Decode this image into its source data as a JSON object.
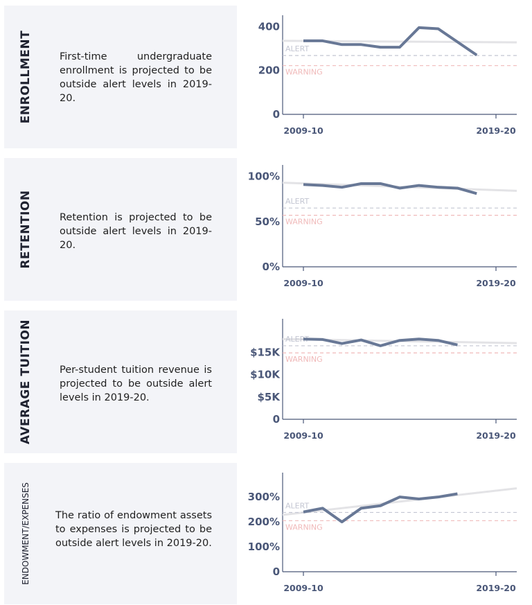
{
  "colors": {
    "card_bg": "#f3f4f8",
    "series_line": "#687896",
    "trend_line": "#e3e3e6",
    "axis": "#4a5778",
    "alert_line": "#c3c6d2",
    "warning_line": "#f0b9b9"
  },
  "panels": [
    {
      "label": "ENROLLMENT",
      "description": "First-time undergraduate enrollment is projected to be outside alert levels in 2019-20.",
      "alert_label": "ALERT",
      "warning_label": "WARNING",
      "x_start_label": "2009-10",
      "x_end_label": "2019-20",
      "y_tick_labels": [
        "0",
        "200",
        "400"
      ]
    },
    {
      "label": "RETENTION",
      "description": "Retention is projected to be outside alert levels in 2019-20.",
      "alert_label": "ALERT",
      "warning_label": "WARNING",
      "x_start_label": "2009-10",
      "x_end_label": "2019-20",
      "y_tick_labels": [
        "0%",
        "50%",
        "100%"
      ]
    },
    {
      "label": "AVERAGE TUITION",
      "description": "Per-student tuition revenue is projected to be outside alert levels in 2019-20.",
      "alert_label": "ALERT",
      "warning_label": "WARNING",
      "x_start_label": "2009-10",
      "x_end_label": "2019-20",
      "y_tick_labels": [
        "0",
        "$5K",
        "$10K",
        "$15K"
      ]
    },
    {
      "label": "ENDOWMENT/EXPENSES",
      "description": "The ratio of endowment assets to expenses is projected to be outside alert levels in 2019-20.",
      "alert_label": "ALERT",
      "warning_label": "WARNING",
      "x_start_label": "2009-10",
      "x_end_label": "2019-20",
      "y_tick_labels": [
        "0",
        "100%",
        "200%",
        "300%"
      ]
    }
  ],
  "chart_data": [
    {
      "type": "line",
      "ylim": [
        0,
        420
      ],
      "yticks": [
        0,
        200,
        400
      ],
      "x_range": [
        "2009-10",
        "2019-20"
      ],
      "series": [
        {
          "x": [
            "2009-10",
            "2010-11",
            "2011-12",
            "2012-13",
            "2013-14",
            "2014-15",
            "2015-16",
            "2016-17",
            "2017-18",
            "2018-19"
          ],
          "values": [
            335,
            335,
            318,
            318,
            306,
            306,
            395,
            390,
            330,
            270
          ]
        }
      ],
      "trend": {
        "start": 335,
        "end": 328
      },
      "alert_level": 268,
      "warning_level": 222
    },
    {
      "type": "line",
      "ylim": [
        0,
        105
      ],
      "yticks": [
        0,
        50,
        100
      ],
      "x_range": [
        "2009-10",
        "2019-20"
      ],
      "series": [
        {
          "x": [
            "2009-10",
            "2010-11",
            "2011-12",
            "2012-13",
            "2013-14",
            "2014-15",
            "2015-16",
            "2016-17",
            "2017-18",
            "2018-19"
          ],
          "values": [
            91,
            90,
            88,
            92,
            92,
            87,
            90,
            88,
            87,
            81
          ]
        }
      ],
      "trend": {
        "start": 93,
        "end": 84
      },
      "alert_level": 65,
      "warning_level": 57
    },
    {
      "type": "line",
      "ylim": [
        0,
        21000
      ],
      "yticks": [
        0,
        5000,
        10000,
        15000
      ],
      "x_range": [
        "2009-10",
        "2019-20"
      ],
      "series": [
        {
          "x": [
            "2009-10",
            "2010-11",
            "2011-12",
            "2012-13",
            "2013-14",
            "2014-15",
            "2015-16",
            "2016-17",
            "2017-18"
          ],
          "values": [
            18000,
            17900,
            17000,
            17800,
            16500,
            17700,
            18000,
            17700,
            16700
          ]
        }
      ],
      "trend": {
        "start": 18000,
        "end": 17100
      },
      "alert_level": 16500,
      "warning_level": 14900
    },
    {
      "type": "line",
      "ylim": [
        0,
        370
      ],
      "yticks": [
        0,
        100,
        200,
        300
      ],
      "x_range": [
        "2009-10",
        "2019-20"
      ],
      "series": [
        {
          "x": [
            "2009-10",
            "2010-11",
            "2011-12",
            "2012-13",
            "2013-14",
            "2014-15",
            "2015-16",
            "2016-17",
            "2017-18"
          ],
          "values": [
            240,
            255,
            200,
            255,
            265,
            300,
            292,
            300,
            313
          ]
        }
      ],
      "trend": {
        "start": 228,
        "end": 335
      },
      "alert_level": 238,
      "warning_level": 205
    }
  ]
}
